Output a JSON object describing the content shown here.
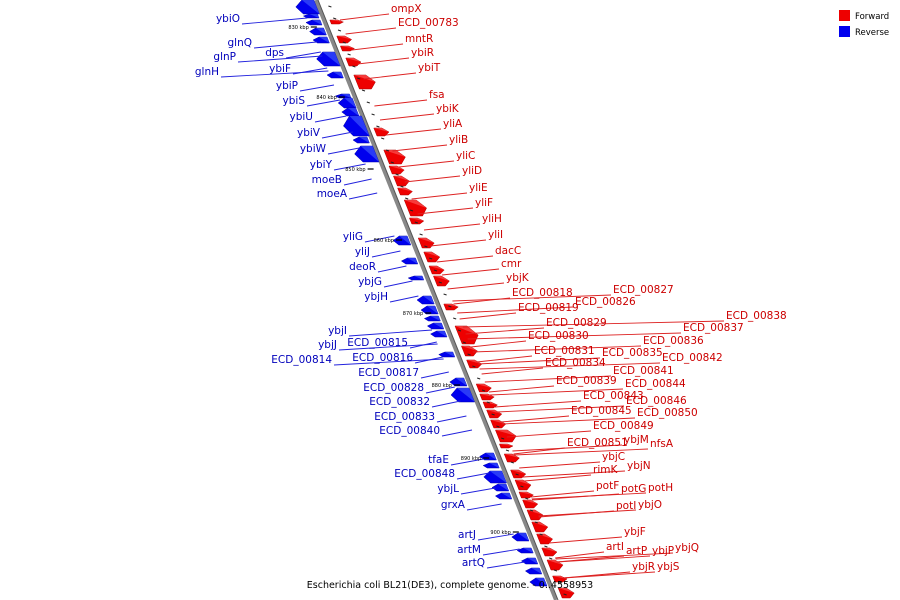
{
  "caption": "Escherichia coli BL21(DE3), complete genome. - 0..4558953",
  "legend": [
    {
      "label": "Forward",
      "color": "#ee0000"
    },
    {
      "label": "Reverse",
      "color": "#0000ee"
    }
  ],
  "colors": {
    "forward": "#ee0000",
    "reverse": "#0000ee",
    "backbone": "#888888"
  },
  "ticks": [
    "830 kbp",
    "840 kbp",
    "850 kbp",
    "860 kbp",
    "870 kbp",
    "880 kbp",
    "890 kbp",
    "900 kbp"
  ],
  "forward_genes": [
    "ompX",
    "ECD_00783",
    "mntR",
    "ybiR",
    "ybiT",
    "fsa",
    "ybiK",
    "yliA",
    "yliB",
    "yliC",
    "yliD",
    "yliE",
    "yliF",
    "yliH",
    "yliI",
    "dacC",
    "cmr",
    "ybjK",
    "ECD_00818",
    "ECD_00819",
    "ECD_00826",
    "ECD_00827",
    "ECD_00829",
    "ECD_00830",
    "ECD_00831",
    "ECD_00834",
    "ECD_00835",
    "ECD_00836",
    "ECD_00837",
    "ECD_00838",
    "ECD_00839",
    "ECD_00841",
    "ECD_00842",
    "ECD_00843",
    "ECD_00844",
    "ECD_00845",
    "ECD_00846",
    "ECD_00849",
    "ECD_00850",
    "ECD_00851",
    "ybjM",
    "nfsA",
    "ybjC",
    "ybjN",
    "rimK",
    "potF",
    "potG",
    "potH",
    "potI",
    "ybjO",
    "ybjF",
    "artI",
    "artP",
    "ybjP",
    "ybjQ",
    "ybjR",
    "ybjS"
  ],
  "reverse_genes": [
    "ybiO",
    "glnQ",
    "glnP",
    "dps",
    "glnH",
    "ybiF",
    "ybiP",
    "ybiS",
    "ybiU",
    "ybiV",
    "ybiW",
    "ybiY",
    "moeB",
    "moeA",
    "yliG",
    "yliJ",
    "deoR",
    "ybjG",
    "ybjH",
    "ybjI",
    "ybjJ",
    "ECD_00815",
    "ECD_00814",
    "ECD_00816",
    "ECD_00817",
    "ECD_00828",
    "ECD_00832",
    "ECD_00833",
    "ECD_00840",
    "tfaE",
    "ECD_00848",
    "ybjL",
    "grxA",
    "artJ",
    "artM",
    "artQ"
  ]
}
